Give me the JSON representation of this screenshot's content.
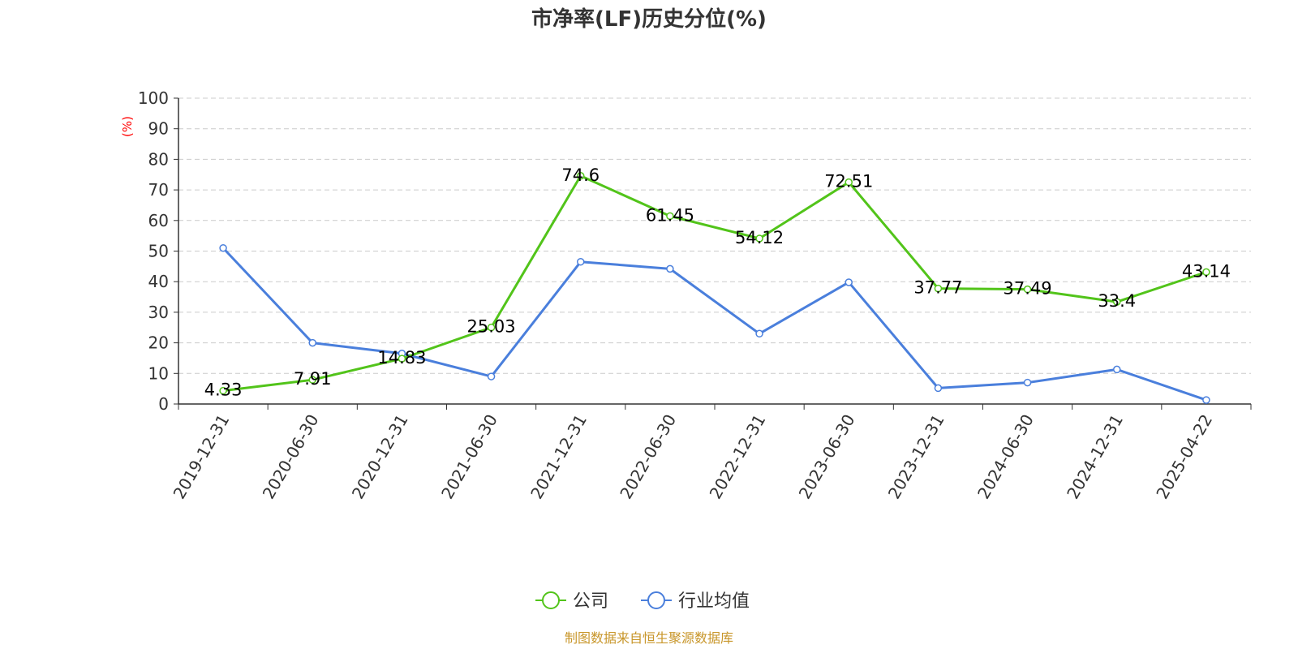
{
  "chart_data": {
    "type": "line",
    "title": "市净率(LF)历史分位(%)",
    "ylabel": "(%)",
    "ylim": [
      0,
      100
    ],
    "yticks": [
      0,
      10,
      20,
      30,
      40,
      50,
      60,
      70,
      80,
      90,
      100
    ],
    "categories": [
      "2019-12-31",
      "2020-06-30",
      "2020-12-31",
      "2021-06-30",
      "2021-12-31",
      "2022-06-30",
      "2022-12-31",
      "2023-06-30",
      "2023-12-31",
      "2024-06-30",
      "2024-12-31",
      "2025-04-22"
    ],
    "series": [
      {
        "name": "公司",
        "color": "#52c41a",
        "values": [
          4.33,
          7.91,
          14.83,
          25.03,
          74.6,
          61.45,
          54.12,
          72.51,
          37.77,
          37.49,
          33.4,
          43.14
        ],
        "labels": [
          "4.33",
          "7.91",
          "14.83",
          "25.03",
          "74.6",
          "61.45",
          "54.12",
          "72.51",
          "37.77",
          "37.49",
          "33.4",
          "43.14"
        ]
      },
      {
        "name": "行业均值",
        "color": "#4a7fdc",
        "values": [
          51,
          20,
          16.5,
          9,
          46.5,
          44.2,
          23,
          39.8,
          5.2,
          7,
          11.3,
          1.3
        ]
      }
    ],
    "grid": true,
    "legend": "bottom-center",
    "source": "制图数据来自恒生聚源数据库"
  }
}
